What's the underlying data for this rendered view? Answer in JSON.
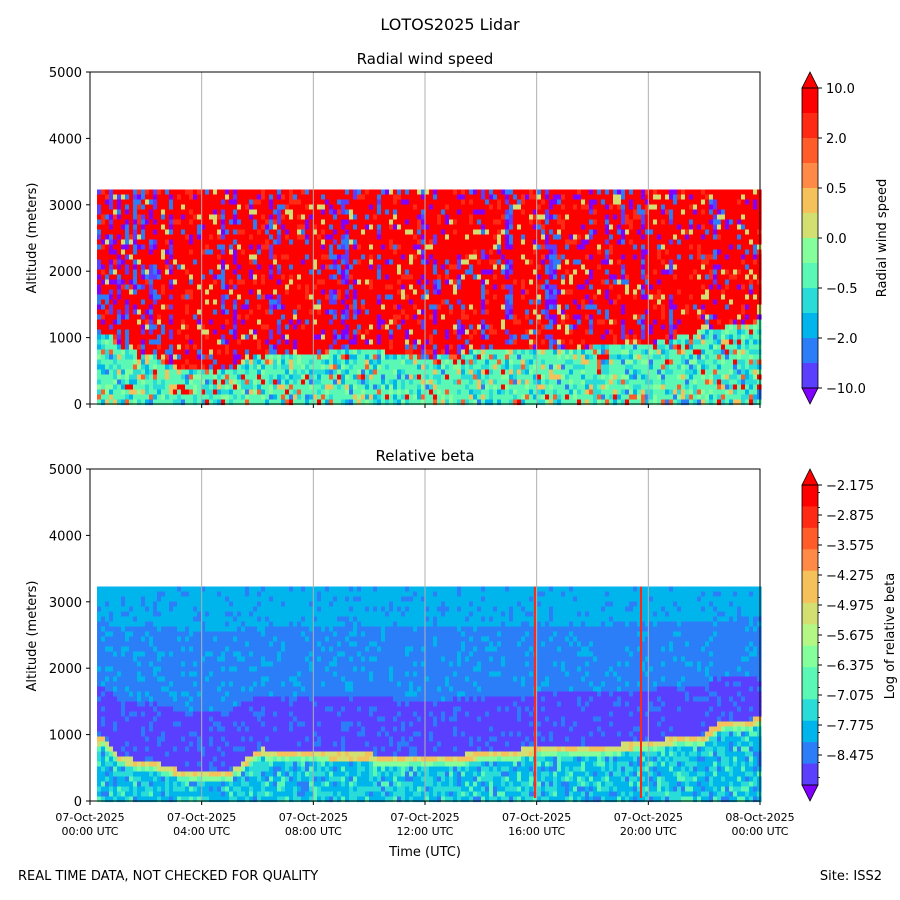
{
  "suptitle": "LOTOS2025 Lidar",
  "footer": {
    "left": "REAL TIME DATA, NOT CHECKED FOR QUALITY",
    "right": "Site: ISS2"
  },
  "colors": {
    "rainbow": [
      "#8000ff",
      "#5a3ffe",
      "#2c7ef8",
      "#00b5eb",
      "#2adcd7",
      "#5af8b4",
      "#84ff9c",
      "#b4f785",
      "#d3df71",
      "#f4c15b",
      "#ff8a47",
      "#ff5c2a",
      "#ff2a14",
      "#ff0000"
    ],
    "grid": "#b0b0b0"
  },
  "chart_data": [
    {
      "type": "heatmap",
      "title": "Radial wind speed",
      "xlabel": "",
      "ylabel": "Altitude (meters)",
      "ylim": [
        0,
        5000
      ],
      "yticks": [
        0,
        1000,
        2000,
        3000,
        4000,
        5000
      ],
      "xrange_hours": [
        0,
        24
      ],
      "grid": "vertical lines at x ticks",
      "data_top_altitude": 3230,
      "colorbar": {
        "label": "Radial wind speed",
        "tick_labels": [
          "10.0",
          "2.0",
          "0.5",
          "0.0",
          "−0.5",
          "−2.0",
          "−10.0"
        ],
        "extend": "both"
      },
      "boundary_layer_top": [
        {
          "hour": 0,
          "altitude": 950
        },
        {
          "hour": 0.5,
          "altitude": 1150
        },
        {
          "hour": 1,
          "altitude": 900
        },
        {
          "hour": 2,
          "altitude": 800
        },
        {
          "hour": 3,
          "altitude": 600
        },
        {
          "hour": 4,
          "altitude": 520
        },
        {
          "hour": 5,
          "altitude": 560
        },
        {
          "hour": 6,
          "altitude": 800
        },
        {
          "hour": 8,
          "altitude": 820
        },
        {
          "hour": 10,
          "altitude": 850
        },
        {
          "hour": 12,
          "altitude": 720
        },
        {
          "hour": 14,
          "altitude": 850
        },
        {
          "hour": 16,
          "altitude": 850
        },
        {
          "hour": 18,
          "altitude": 900
        },
        {
          "hour": 20,
          "altitude": 950
        },
        {
          "hour": 22,
          "altitude": 1150
        },
        {
          "hour": 24,
          "altitude": 1300
        }
      ]
    },
    {
      "type": "heatmap",
      "title": "Relative beta",
      "xlabel": "Time (UTC)",
      "ylabel": "Altitude (meters)",
      "ylim": [
        0,
        5000
      ],
      "yticks": [
        0,
        1000,
        2000,
        3000,
        4000,
        5000
      ],
      "xrange_hours": [
        0,
        24
      ],
      "grid": "vertical lines at x ticks",
      "data_top_altitude": 3230,
      "x_tick_labels": [
        [
          "07-Oct-2025",
          "00:00 UTC"
        ],
        [
          "07-Oct-2025",
          "04:00 UTC"
        ],
        [
          "07-Oct-2025",
          "08:00 UTC"
        ],
        [
          "07-Oct-2025",
          "12:00 UTC"
        ],
        [
          "07-Oct-2025",
          "16:00 UTC"
        ],
        [
          "07-Oct-2025",
          "20:00 UTC"
        ],
        [
          "08-Oct-2025",
          "00:00 UTC"
        ]
      ],
      "colorbar": {
        "label": "Log of relative beta",
        "tick_labels": [
          "−2.175",
          "−2.875",
          "−3.575",
          "−4.275",
          "−4.975",
          "−5.675",
          "−6.375",
          "−7.075",
          "−7.775",
          "−8.475"
        ],
        "extend": "both"
      },
      "aerosol_layer_top": [
        {
          "hour": 0,
          "altitude": 900
        },
        {
          "hour": 0.4,
          "altitude": 950
        },
        {
          "hour": 1,
          "altitude": 650
        },
        {
          "hour": 2,
          "altitude": 600
        },
        {
          "hour": 3,
          "altitude": 480
        },
        {
          "hour": 4,
          "altitude": 420
        },
        {
          "hour": 5,
          "altitude": 450
        },
        {
          "hour": 6,
          "altitude": 780
        },
        {
          "hour": 8,
          "altitude": 720
        },
        {
          "hour": 10,
          "altitude": 700
        },
        {
          "hour": 12,
          "altitude": 650
        },
        {
          "hour": 14,
          "altitude": 720
        },
        {
          "hour": 16,
          "altitude": 800
        },
        {
          "hour": 18,
          "altitude": 800
        },
        {
          "hour": 20,
          "altitude": 900
        },
        {
          "hour": 22,
          "altitude": 1000
        },
        {
          "hour": 22.3,
          "altitude": 1150
        },
        {
          "hour": 24,
          "altitude": 1250
        }
      ],
      "vertical_spikes_hours": [
        15.9,
        19.7
      ]
    }
  ]
}
